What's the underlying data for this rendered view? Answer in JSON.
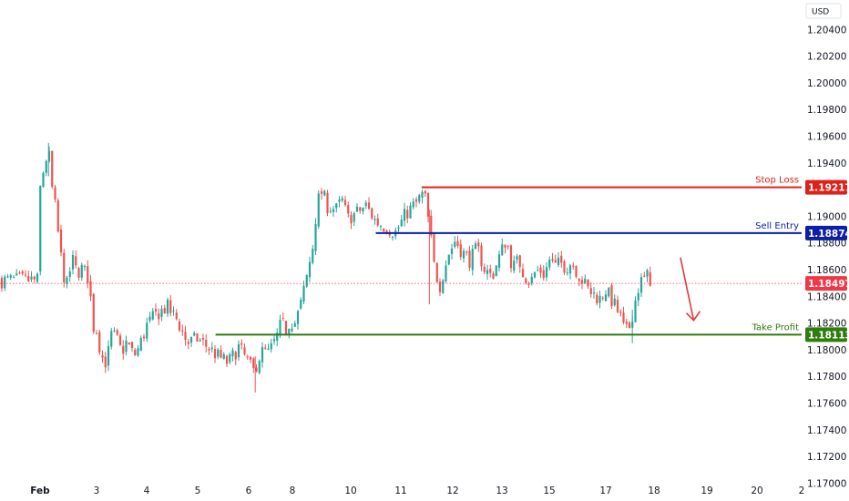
{
  "chart_data": {
    "type": "candlestick",
    "currency_label": "USD",
    "y_ticks": [
      "1.20400",
      "1.20200",
      "1.20000",
      "1.19800",
      "1.19600",
      "1.19400",
      "1.19200",
      "1.19000",
      "1.18800",
      "1.18600",
      "1.18400",
      "1.18200",
      "1.18000",
      "1.17800",
      "1.17600",
      "1.17400",
      "1.17200",
      "1.17000"
    ],
    "x_ticks": [
      "Feb",
      "3",
      "4",
      "5",
      "6",
      "8",
      "10",
      "11",
      "12",
      "13",
      "15",
      "17",
      "18",
      "19",
      "20",
      "2"
    ],
    "ylim": [
      1.169,
      1.2058
    ],
    "levels": [
      {
        "label": "Stop Loss",
        "value": "1.19217",
        "price": 1.19217,
        "color": "#e0201a",
        "start_day": 11.4
      },
      {
        "label": "Sell Entry",
        "value": "1.18874",
        "price": 1.18874,
        "color": "#0d1fa6",
        "start_day": 10.5
      },
      {
        "label": "Take Profit",
        "value": "1.18113",
        "price": 1.18113,
        "color": "#2e7d0e",
        "start_day": 5.35
      }
    ],
    "current_price": {
      "value": "1.18497",
      "price": 1.18497,
      "color": "#f23645"
    },
    "arrow": {
      "color": "#e03a3a",
      "from_day": 18.5,
      "from_price": 1.1869,
      "to_day": 18.75,
      "to_price": 1.1822
    },
    "colors": {
      "up": "#26a69a",
      "down": "#ef5350",
      "dot": "#f23645"
    },
    "close_path": [
      [
        0.0,
        1.192
      ],
      [
        0.15,
        1.1938
      ],
      [
        0.3,
        1.195
      ],
      [
        0.4,
        1.1924
      ],
      [
        0.55,
        1.1905
      ],
      [
        0.7,
        1.1875
      ],
      [
        0.85,
        1.1855
      ],
      [
        1.0,
        1.1845
      ],
      [
        1.1,
        1.187
      ],
      [
        1.3,
        1.1858
      ],
      [
        1.5,
        1.1861
      ],
      [
        1.75,
        1.1852
      ],
      [
        1.85,
        1.1818
      ],
      [
        2.0,
        1.1815
      ],
      [
        2.2,
        1.1795
      ],
      [
        2.4,
        1.179
      ],
      [
        2.6,
        1.1812
      ],
      [
        2.8,
        1.1808
      ],
      [
        3.0,
        1.1798
      ],
      [
        3.2,
        1.1806
      ],
      [
        3.5,
        1.1795
      ],
      [
        3.7,
        1.1802
      ],
      [
        4.0,
        1.1818
      ],
      [
        4.2,
        1.1827
      ],
      [
        4.4,
        1.1832
      ],
      [
        4.6,
        1.1822
      ],
      [
        4.8,
        1.1805
      ],
      [
        5.0,
        1.1808
      ],
      [
        5.2,
        1.1802
      ],
      [
        5.4,
        1.1795
      ],
      [
        5.6,
        1.179
      ],
      [
        5.8,
        1.1802
      ],
      [
        6.0,
        1.179
      ],
      [
        6.2,
        1.1783
      ],
      [
        6.5,
        1.1795
      ],
      [
        6.7,
        1.18
      ],
      [
        6.9,
        1.1797
      ],
      [
        7.1,
        1.1803
      ],
      [
        7.3,
        1.181
      ],
      [
        7.5,
        1.182
      ],
      [
        7.7,
        1.1815
      ],
      [
        7.9,
        1.1822
      ],
      [
        8.1,
        1.182
      ],
      [
        8.3,
        1.1835
      ],
      [
        8.5,
        1.1855
      ],
      [
        8.7,
        1.1878
      ],
      [
        8.85,
        1.191
      ],
      [
        9.0,
        1.1918
      ],
      [
        9.2,
        1.1908
      ],
      [
        9.5,
        1.1905
      ],
      [
        9.7,
        1.1912
      ],
      [
        9.9,
        1.1898
      ],
      [
        10.1,
        1.1902
      ],
      [
        10.3,
        1.1908
      ],
      [
        10.5,
        1.1896
      ],
      [
        10.7,
        1.1892
      ],
      [
        10.9,
        1.1888
      ],
      [
        11.1,
        1.1902
      ],
      [
        11.3,
        1.191
      ],
      [
        11.45,
        1.1918
      ],
      [
        11.55,
        1.1892
      ],
      [
        11.65,
        1.186
      ],
      [
        11.75,
        1.1848
      ],
      [
        11.9,
        1.187
      ],
      [
        12.05,
        1.1882
      ],
      [
        12.2,
        1.1873
      ],
      [
        12.35,
        1.1867
      ],
      [
        12.5,
        1.1876
      ],
      [
        12.65,
        1.186
      ],
      [
        12.8,
        1.1855
      ],
      [
        12.95,
        1.187
      ],
      [
        13.1,
        1.1882
      ],
      [
        13.25,
        1.1878
      ],
      [
        13.4,
        1.1865
      ],
      [
        13.55,
        1.1862
      ],
      [
        13.7,
        1.1868
      ],
      [
        13.85,
        1.186
      ],
      [
        14.0,
        1.1855
      ],
      [
        14.2,
        1.185
      ],
      [
        14.4,
        1.1858
      ],
      [
        14.6,
        1.186
      ],
      [
        14.8,
        1.1856
      ],
      [
        15.0,
        1.1868
      ],
      [
        15.2,
        1.1862
      ],
      [
        15.4,
        1.1865
      ],
      [
        15.6,
        1.1862
      ],
      [
        15.8,
        1.1866
      ],
      [
        16.0,
        1.1858
      ],
      [
        16.2,
        1.1851
      ],
      [
        16.4,
        1.1844
      ],
      [
        16.6,
        1.1841
      ],
      [
        16.8,
        1.1838
      ],
      [
        17.0,
        1.1845
      ],
      [
        17.2,
        1.1832
      ],
      [
        17.3,
        1.1825
      ],
      [
        17.4,
        1.1812
      ],
      [
        17.5,
        1.1818
      ],
      [
        17.6,
        1.1835
      ],
      [
        17.7,
        1.185
      ],
      [
        17.85,
        1.1855
      ],
      [
        17.95,
        1.1852
      ]
    ]
  }
}
